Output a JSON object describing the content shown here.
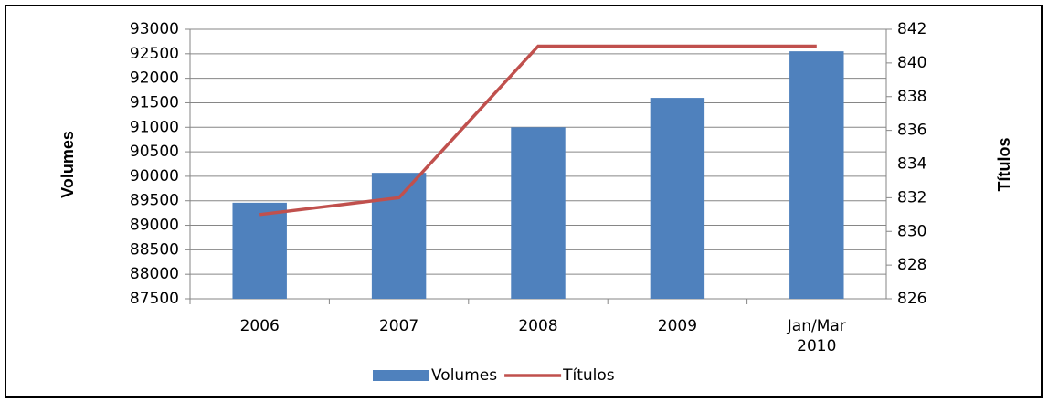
{
  "chart_data": {
    "type": "bar-line",
    "categories": [
      "2006",
      "2007",
      "2008",
      "2009",
      "Jan/Mar 2010"
    ],
    "series": [
      {
        "name": "Volumes",
        "type": "bar",
        "color": "#4f81bd",
        "values": [
          89460,
          90070,
          91000,
          91600,
          92550
        ]
      },
      {
        "name": "Títulos",
        "type": "line",
        "axis": "y2",
        "color": "#c0504d",
        "values": [
          831,
          832,
          841,
          841,
          841
        ]
      }
    ],
    "ylabel": "Volumes",
    "y2label": "Títulos",
    "ylim": [
      87500,
      93000
    ],
    "yticks": [
      87500,
      88000,
      88500,
      89000,
      89500,
      90000,
      90500,
      91000,
      91500,
      92000,
      92500,
      93000
    ],
    "y2lim": [
      826,
      842
    ],
    "y2ticks": [
      826,
      828,
      830,
      832,
      834,
      836,
      838,
      840,
      842
    ],
    "grid": true,
    "legend": "bottom"
  }
}
